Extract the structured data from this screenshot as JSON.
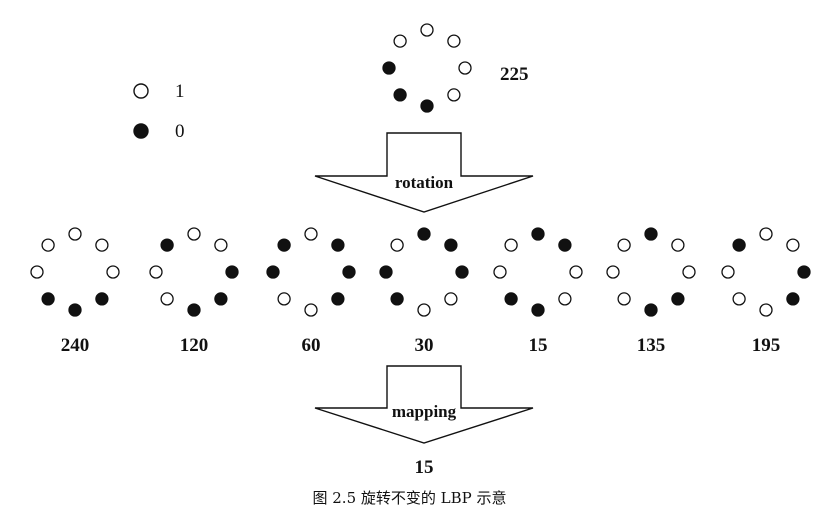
{
  "legend": [
    {
      "label": "1",
      "state": "open"
    },
    {
      "label": "0",
      "state": "filled"
    }
  ],
  "top_pattern": {
    "value": "225",
    "bits": [
      1,
      1,
      1,
      1,
      0,
      0,
      0,
      1
    ]
  },
  "arrow_top_label": "rotation",
  "patterns": [
    {
      "value": "240",
      "bits": [
        1,
        1,
        1,
        0,
        0,
        0,
        1,
        1
      ]
    },
    {
      "value": "120",
      "bits": [
        1,
        1,
        0,
        0,
        0,
        1,
        1,
        0
      ]
    },
    {
      "value": "60",
      "bits": [
        1,
        0,
        0,
        0,
        1,
        1,
        0,
        0
      ]
    },
    {
      "value": "30",
      "bits": [
        0,
        0,
        0,
        1,
        1,
        0,
        0,
        1
      ]
    },
    {
      "value": "15",
      "bits": [
        0,
        0,
        1,
        1,
        0,
        0,
        1,
        1
      ]
    },
    {
      "value": "135",
      "bits": [
        0,
        1,
        1,
        0,
        0,
        1,
        1,
        1
      ]
    },
    {
      "value": "195",
      "bits": [
        1,
        1,
        0,
        0,
        1,
        1,
        1,
        0
      ]
    }
  ],
  "arrow_bottom_label": "mapping",
  "result_value": "15",
  "caption": "图 2.5  旋转不变的 LBP 示意",
  "colors": {
    "ink": "#111111",
    "background": "#ffffff"
  }
}
